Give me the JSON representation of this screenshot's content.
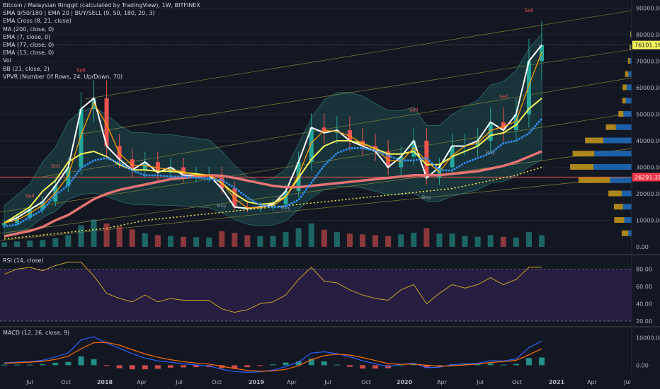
{
  "header": {
    "symbol_line": "Bitcoin / Malaysian Ringgit (calculated by TradingView), 1W, BITFINEX",
    "indicators": [
      "SMA 9/50/180 | EMA 20 | BUY/SELL (9, 50, 180, 20, 3)",
      "EMA Cross (8, 21, close)",
      "MA (200, close, 0)",
      "EMA (7, close, 0)",
      "EMA (77, close, 0)",
      "EMA (13, close, 0)",
      "Vol",
      "BB (21, close, 2)",
      "VPVR (Number Of Rows, 24, Up/Down, 70)"
    ]
  },
  "rsi_label": "RSI (14, close)",
  "macd_label": "MACD (12, 26, close, 9)",
  "price_axis": {
    "ticks": [
      "90000.00",
      "80000.00",
      "70000.00",
      "60000.00",
      "50000.00",
      "40000.00",
      "30000.00",
      "20000.00",
      "10000.00",
      "0.00"
    ],
    "last_price": "76101.16",
    "level_price": "26291.31",
    "last_color": "#f5f55b",
    "level_color": "#f23645"
  },
  "rsi_axis": {
    "ticks": [
      "80.00",
      "60.00",
      "40.00",
      "20.00"
    ]
  },
  "macd_axis": {
    "ticks": [
      "10000.00",
      "0.00"
    ]
  },
  "time_axis": [
    "Jul",
    "Oct",
    "2018",
    "Apr",
    "Jul",
    "Oct",
    "2019",
    "Apr",
    "Jul",
    "Oct",
    "2020",
    "Apr",
    "Jul",
    "Oct",
    "2021",
    "Apr",
    "Jul"
  ],
  "signals": {
    "sell": "Sell",
    "buy": "Buy"
  },
  "colors": {
    "background": "#131722",
    "bull": "#26a69a",
    "bear": "#ef5350",
    "rsi_line": "#c9a227",
    "rsi_band": "#2a1e45",
    "macd_line": "#2962ff",
    "signal_line": "#ff6d00",
    "ema_white": "#ffffff",
    "ema_yellow": "#f5f55b",
    "ema_orange": "#ff9800",
    "sma_salmon": "#e57373",
    "dots_blue": "#2f8ff0",
    "ma200_yellow": "#ffeb3b",
    "bb_fill": "#1e4a4f",
    "vpvr_up": "#c79a1a",
    "vpvr_down": "#1f6fbf"
  },
  "chart_data": {
    "type": "line",
    "title": "Bitcoin / Malaysian Ringgit (calculated by TradingView), 1W, BITFINEX",
    "y_range": [
      0,
      92000
    ],
    "rsi_range": [
      15,
      95
    ],
    "macd_range": [
      -3000,
      13500
    ],
    "x": [
      "2017-06",
      "2017-07",
      "2017-08",
      "2017-09",
      "2017-10",
      "2017-11",
      "2017-12",
      "2018-01",
      "2018-02",
      "2018-03",
      "2018-04",
      "2018-05",
      "2018-06",
      "2018-07",
      "2018-08",
      "2018-09",
      "2018-10",
      "2018-11",
      "2018-12",
      "2019-01",
      "2019-02",
      "2019-03",
      "2019-04",
      "2019-05",
      "2019-06",
      "2019-07",
      "2019-08",
      "2019-09",
      "2019-10",
      "2019-11",
      "2019-12",
      "2020-01",
      "2020-02",
      "2020-03",
      "2020-04",
      "2020-05",
      "2020-06",
      "2020-07",
      "2020-08",
      "2020-09",
      "2020-10",
      "2020-11",
      "2020-12"
    ],
    "series": [
      {
        "values": [
          9000,
          11000,
          14000,
          17000,
          23000,
          30000,
          52000,
          56000,
          38000,
          33000,
          29000,
          32000,
          28000,
          30000,
          27000,
          27000,
          27000,
          22000,
          15000,
          14500,
          15000,
          16000,
          21000,
          32000,
          45000,
          43000,
          44000,
          40000,
          38000,
          36000,
          30000,
          34000,
          40000,
          26000,
          30000,
          38000,
          38000,
          40000,
          47000,
          44000,
          50000,
          70000,
          76101
        ]
      },
      {
        "values": [
          9000,
          12000,
          15000,
          21000,
          25000,
          32000,
          35000,
          36000,
          34000,
          31000,
          29000,
          29000,
          28500,
          28500,
          28000,
          27500,
          27000,
          24000,
          20000,
          17000,
          16000,
          16500,
          19000,
          26000,
          33000,
          38000,
          40000,
          40000,
          39000,
          37000,
          35000,
          35000,
          36000,
          31000,
          31000,
          34000,
          36000,
          38000,
          42000,
          43000,
          46000,
          52000,
          56000
        ]
      },
      {
        "values": [
          4000,
          5000,
          6000,
          7500,
          10000,
          12000,
          15000,
          18000,
          20000,
          21500,
          22500,
          23500,
          24500,
          25500,
          26000,
          26500,
          27000,
          26800,
          26000,
          25000,
          24000,
          23000,
          22500,
          22500,
          23000,
          23500,
          24000,
          24500,
          25000,
          25500,
          26000,
          26500,
          27000,
          27000,
          27000,
          27500,
          28000,
          28500,
          29500,
          30500,
          32000,
          34000,
          36000
        ]
      },
      {
        "values": [
          3000,
          3500,
          4000,
          4500,
          5000,
          5500,
          6000,
          6500,
          7000,
          8000,
          9000,
          10000,
          10500,
          11000,
          11500,
          12000,
          12500,
          13000,
          13500,
          14000,
          14500,
          15000,
          15500,
          16000,
          16500,
          17000,
          17500,
          18000,
          18500,
          19000,
          19500,
          20000,
          20500,
          21000,
          21500,
          22000,
          23000,
          24000,
          25000,
          26000,
          27000,
          28500,
          30000
        ]
      }
    ],
    "rsi": [
      74,
      80,
      82,
      78,
      84,
      88,
      88,
      72,
      52,
      46,
      42,
      50,
      42,
      46,
      44,
      44,
      44,
      34,
      30,
      33,
      40,
      42,
      50,
      68,
      82,
      66,
      64,
      56,
      50,
      46,
      44,
      56,
      62,
      40,
      52,
      62,
      58,
      62,
      70,
      62,
      68,
      82,
      82
    ],
    "macd": [
      900,
      1100,
      1300,
      1800,
      3000,
      4500,
      9200,
      10400,
      8000,
      6200,
      4200,
      2600,
      1600,
      1100,
      500,
      100,
      -300,
      -1500,
      -2300,
      -2600,
      -2400,
      -1800,
      -500,
      1200,
      4400,
      4900,
      4200,
      3100,
      1600,
      500,
      -500,
      300,
      800,
      -900,
      -700,
      200,
      500,
      700,
      1700,
      1500,
      2300,
      6400,
      8800
    ],
    "macd_signal": [
      700,
      900,
      1100,
      1400,
      2100,
      3300,
      6000,
      8200,
      8300,
      7300,
      5700,
      4100,
      2900,
      2000,
      1300,
      800,
      400,
      -400,
      -1200,
      -1900,
      -2200,
      -2100,
      -1500,
      -200,
      2000,
      3500,
      4000,
      3700,
      2800,
      1700,
      600,
      300,
      400,
      0,
      -400,
      -200,
      100,
      400,
      1000,
      1300,
      1800,
      3800,
      6000
    ],
    "volume": [
      12,
      14,
      16,
      18,
      22,
      30,
      55,
      70,
      60,
      52,
      45,
      35,
      30,
      28,
      26,
      25,
      24,
      40,
      36,
      30,
      28,
      28,
      38,
      48,
      60,
      44,
      38,
      34,
      32,
      30,
      28,
      32,
      36,
      48,
      34,
      34,
      28,
      26,
      30,
      26,
      24,
      38,
      30
    ]
  },
  "vpvr_data": {
    "price_rows": [
      5000,
      10000,
      15000,
      20000,
      25000,
      30000,
      35000,
      40000,
      45000,
      50000,
      55000,
      60000,
      65000,
      70000,
      75000,
      80000
    ],
    "up": [
      4000,
      6000,
      5500,
      8000,
      19000,
      14000,
      13000,
      11000,
      6000,
      3000,
      2000,
      2500,
      2000,
      1200,
      700,
      500
    ],
    "down": [
      2000,
      4500,
      5200,
      6000,
      13000,
      23000,
      22500,
      17000,
      9500,
      5000,
      3600,
      3000,
      2000,
      1000,
      500,
      400
    ]
  }
}
